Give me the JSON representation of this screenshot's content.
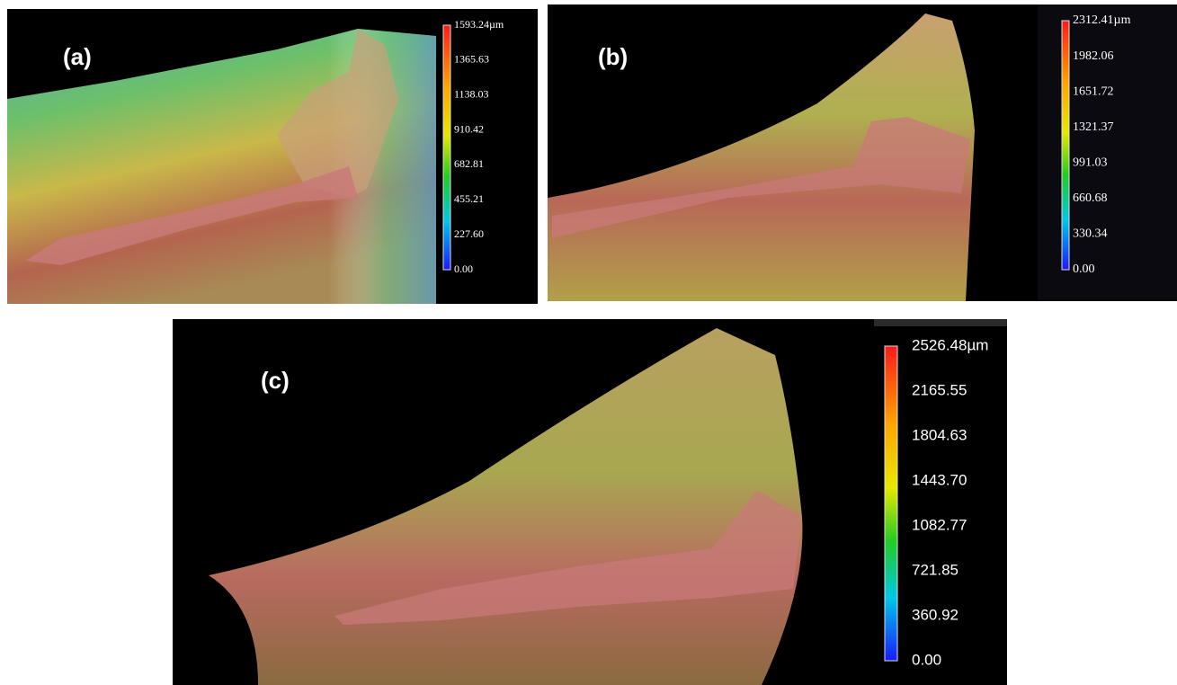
{
  "panels": [
    {
      "label": "(a)",
      "scale": [
        "1593.24µm",
        "1365.63",
        "1138.03",
        "910.42",
        "682.81",
        "455.21",
        "227.60",
        "0.00"
      ]
    },
    {
      "label": "(b)",
      "scale": [
        "2312.41µm",
        "1982.06",
        "1651.72",
        "1321.37",
        "991.03",
        "660.68",
        "330.34",
        "0.00"
      ]
    },
    {
      "label": "(c)",
      "scale": [
        "2526.48µm",
        "2165.55",
        "1804.63",
        "1443.70",
        "1082.77",
        "721.85",
        "360.92",
        "0.00"
      ]
    }
  ]
}
